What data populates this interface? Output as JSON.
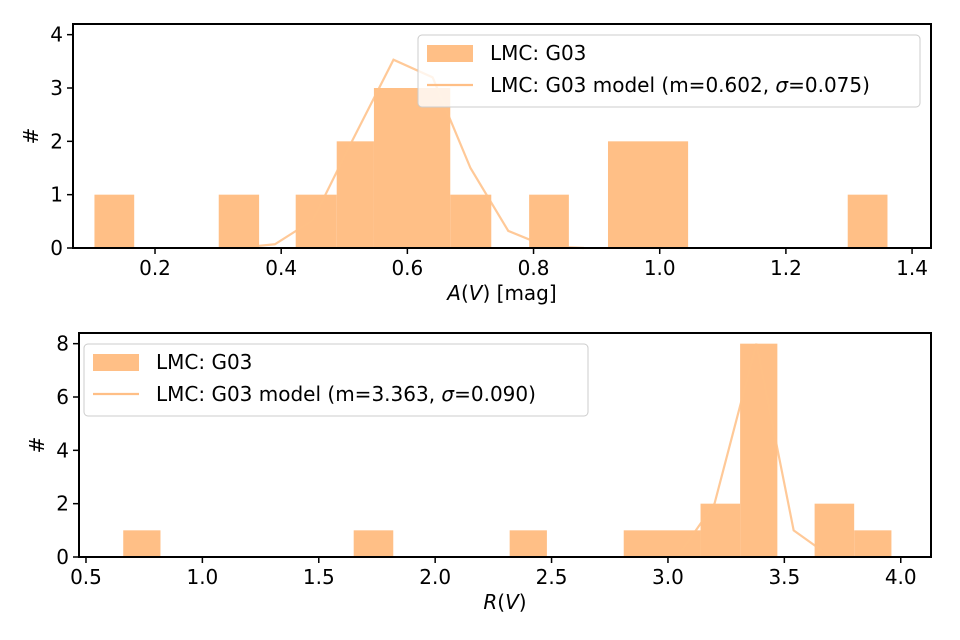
{
  "chart_data": [
    {
      "type": "bar",
      "xlabel": "A(V) [mag]",
      "ylabel": "#",
      "xlim": [
        0.07,
        1.43
      ],
      "ylim": [
        0,
        4.2
      ],
      "xticks": [
        0.2,
        0.4,
        0.6,
        0.8,
        1.0,
        1.2,
        1.4
      ],
      "xtick_labels": [
        "0.2",
        "0.4",
        "0.6",
        "0.8",
        "1.0",
        "1.2",
        "1.4"
      ],
      "yticks": [
        0,
        1,
        2,
        3,
        4
      ],
      "ytick_labels": [
        "0",
        "1",
        "2",
        "3",
        "4"
      ],
      "legend_position": "top-right",
      "series": [
        {
          "name": "LMC: G03",
          "kind": "histogram",
          "color": "#ffbf86",
          "bins": [
            {
              "x0": 0.104,
              "x1": 0.167,
              "count": 1
            },
            {
              "x0": 0.301,
              "x1": 0.365,
              "count": 1
            },
            {
              "x0": 0.423,
              "x1": 0.488,
              "count": 1
            },
            {
              "x0": 0.488,
              "x1": 0.547,
              "count": 2
            },
            {
              "x0": 0.547,
              "x1": 0.668,
              "count": 3
            },
            {
              "x0": 0.668,
              "x1": 0.733,
              "count": 1
            },
            {
              "x0": 0.793,
              "x1": 0.856,
              "count": 1
            },
            {
              "x0": 0.918,
              "x1": 1.045,
              "count": 2
            },
            {
              "x0": 1.298,
              "x1": 1.361,
              "count": 1
            }
          ]
        },
        {
          "name": "LMC: G03 model (m=0.602, σ=0.075)",
          "kind": "line",
          "color": "#ffbf86",
          "x": [
            0.33,
            0.39,
            0.45,
            0.51,
            0.578,
            0.64,
            0.7,
            0.76,
            0.82,
            0.88
          ],
          "y": [
            0.0,
            0.07,
            0.52,
            1.95,
            3.53,
            3.2,
            1.5,
            0.32,
            0.03,
            0.0
          ]
        }
      ]
    },
    {
      "type": "bar",
      "xlabel": "R(V)",
      "ylabel": "#",
      "xlim": [
        0.47,
        4.13
      ],
      "ylim": [
        0,
        8.4
      ],
      "xticks": [
        0.5,
        1.0,
        1.5,
        2.0,
        2.5,
        3.0,
        3.5,
        4.0
      ],
      "xtick_labels": [
        "0.5",
        "1.0",
        "1.5",
        "2.0",
        "2.5",
        "3.0",
        "3.5",
        "4.0"
      ],
      "yticks": [
        0,
        2,
        4,
        6,
        8
      ],
      "ytick_labels": [
        "0",
        "2",
        "4",
        "6",
        "8"
      ],
      "legend_position": "top-left",
      "series": [
        {
          "name": "LMC: G03",
          "kind": "histogram",
          "color": "#ffbf86",
          "bins": [
            {
              "x0": 0.66,
              "x1": 0.82,
              "count": 1
            },
            {
              "x0": 1.65,
              "x1": 1.82,
              "count": 1
            },
            {
              "x0": 2.32,
              "x1": 2.48,
              "count": 1
            },
            {
              "x0": 2.81,
              "x1": 3.14,
              "count": 1
            },
            {
              "x0": 3.14,
              "x1": 3.31,
              "count": 2
            },
            {
              "x0": 3.31,
              "x1": 3.47,
              "count": 8
            },
            {
              "x0": 3.63,
              "x1": 3.8,
              "count": 2
            },
            {
              "x0": 3.8,
              "x1": 3.96,
              "count": 1
            }
          ]
        },
        {
          "name": "LMC: G03 model (m=3.363, σ=0.090)",
          "kind": "line",
          "color": "#ffbf86",
          "x": [
            3.04,
            3.2,
            3.38,
            3.54,
            3.7
          ],
          "y": [
            0.0,
            2.0,
            8.0,
            1.0,
            0.0
          ]
        }
      ]
    }
  ]
}
